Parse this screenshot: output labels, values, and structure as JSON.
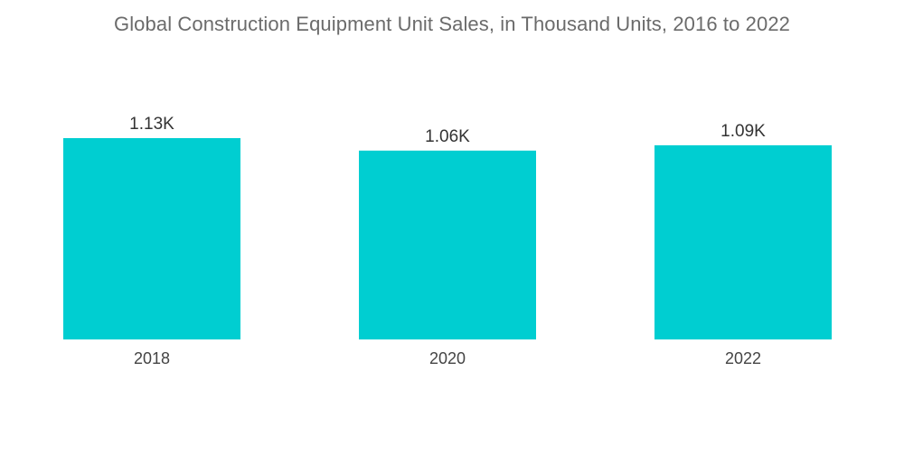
{
  "chart_data": {
    "type": "bar",
    "title": "Global Construction Equipment Unit Sales, in Thousand Units, 2016 to 2022",
    "categories": [
      "2018",
      "2020",
      "2022"
    ],
    "values": [
      1.13,
      1.06,
      1.09
    ],
    "data_labels": [
      "1.13K",
      "1.06K",
      "1.09K"
    ],
    "xlabel": "",
    "ylabel": "",
    "ylim": [
      0,
      1.13
    ],
    "grid": false,
    "legend": "none",
    "colors": {
      "bar": "#00ced1"
    }
  }
}
